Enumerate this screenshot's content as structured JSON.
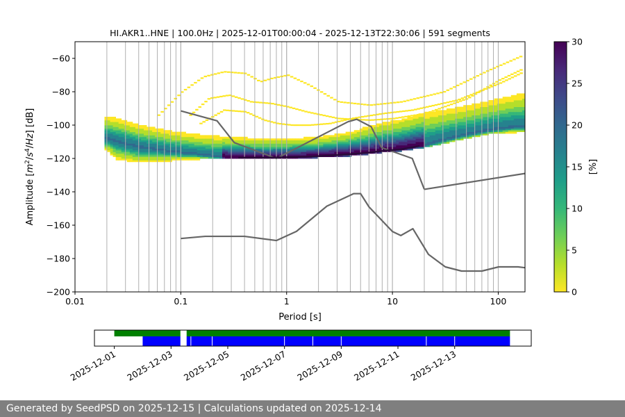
{
  "chart_data": {
    "type": "heatmap",
    "title": "HI.AKR1..HNE | 100.0Hz | 2025-12-01T00:00:04 - 2025-12-13T22:30:06 | 591 segments",
    "xlabel": "Period [s]",
    "ylabel": "Amplitude [m²/s⁴/Hz] [dB]",
    "ylabel_parts": [
      "Amplitude [",
      "m",
      "2",
      "/",
      "s",
      "4",
      "/",
      "Hz",
      "] [dB]"
    ],
    "x_scale": "log",
    "xlim": [
      0.01,
      179
    ],
    "ylim": [
      -200,
      -50
    ],
    "x_ticks": [
      0.01,
      0.1,
      1,
      10,
      100
    ],
    "x_tick_labels": [
      "0.01",
      "0.1",
      "1",
      "10",
      "100"
    ],
    "y_ticks": [
      -200,
      -180,
      -160,
      -140,
      -120,
      -100,
      -80,
      -60
    ],
    "y_tick_labels": [
      "−200",
      "−180",
      "−160",
      "−140",
      "−120",
      "−100",
      "−80",
      "−60"
    ],
    "grid": "vertical-period-lines",
    "colorbar": {
      "label": "[%]",
      "range": [
        0,
        30
      ],
      "ticks": [
        0,
        5,
        10,
        15,
        20,
        25,
        30
      ],
      "tick_labels": [
        "0",
        "5",
        "10",
        "15",
        "20",
        "25",
        "30"
      ]
    },
    "mode_curve": {
      "x": [
        0.02,
        0.04,
        0.08,
        0.15,
        0.3,
        0.7,
        1.5,
        3,
        6,
        8,
        12,
        20,
        40,
        80,
        150
      ],
      "y": [
        -108,
        -113,
        -115.5,
        -117.5,
        -119.5,
        -119.5,
        -119,
        -118,
        -116.5,
        -115.5,
        -114.5,
        -112,
        -107,
        -103,
        -101
      ]
    },
    "spread_band": {
      "x": [
        0.02,
        0.025,
        0.04,
        0.08,
        0.15,
        0.3,
        0.6,
        1,
        2,
        4,
        6,
        8,
        12,
        20,
        40,
        80,
        150,
        179
      ],
      "y_upper": [
        -95,
        -96,
        -100,
        -104,
        -106,
        -107.5,
        -108.5,
        -108.5,
        -107.5,
        -104.5,
        -101,
        -99,
        -97,
        -93,
        -90,
        -86,
        -82,
        -81
      ],
      "y_lower": [
        -115,
        -120,
        -122,
        -121,
        -120,
        -120,
        -120,
        -120,
        -119,
        -118,
        -117,
        -116,
        -115,
        -113,
        -109,
        -105,
        -104,
        -104
      ]
    },
    "outlier_curves": [
      {
        "name": "upper-arc",
        "x": [
          0.06,
          0.1,
          0.16,
          0.25,
          0.4,
          0.55,
          0.7,
          1.0,
          1.6,
          3,
          6,
          12,
          30,
          80,
          170
        ],
        "y": [
          -94,
          -80,
          -71,
          -68,
          -69,
          -74,
          -72,
          -70,
          -76,
          -86,
          -88,
          -86,
          -80,
          -67,
          -58
        ]
      },
      {
        "name": "middle-arc",
        "x": [
          0.12,
          0.18,
          0.28,
          0.45,
          0.7,
          1.0,
          1.5,
          3,
          6,
          10,
          20,
          50,
          100,
          170
        ],
        "y": [
          -94,
          -84,
          -82,
          -86,
          -87,
          -89,
          -92,
          -96,
          -97,
          -96,
          -93,
          -84,
          -73,
          -66
        ]
      },
      {
        "name": "lower-arc",
        "x": [
          0.15,
          0.25,
          0.4,
          0.6,
          0.8,
          1.1,
          1.6,
          2.5,
          4,
          8,
          15,
          40,
          100,
          170
        ],
        "y": [
          -99,
          -91,
          -92,
          -97,
          -99,
          -100,
          -100,
          -99,
          -96,
          -93,
          -91,
          -85,
          -75,
          -68
        ]
      }
    ],
    "nhnm": {
      "name": "New High Noise Model",
      "x": [
        0.1,
        0.22,
        0.32,
        0.8,
        3.8,
        4.6,
        6.3,
        7.9,
        15.4,
        20
      ],
      "y": [
        -91.5,
        -97.4,
        -110.5,
        -120,
        -98,
        -96.5,
        -101,
        -113.5,
        -120,
        -138.5
      ]
    },
    "nhnm_tail": {
      "x": [
        20,
        179
      ],
      "y": [
        -138.5,
        -129
      ]
    },
    "nlnm": {
      "name": "New Low Noise Model",
      "x": [
        0.1,
        0.17,
        0.4,
        0.8,
        1.24,
        2.4,
        4.3,
        5.0,
        6.0,
        10.0,
        12.0,
        15.6,
        21.9,
        31.6,
        45,
        70,
        101,
        154,
        179
      ],
      "y": [
        -168,
        -166.7,
        -166.7,
        -169.2,
        -163.7,
        -148.6,
        -141.1,
        -141.1,
        -149,
        -163.8,
        -166.2,
        -162.1,
        -177.5,
        -185,
        -187.5,
        -187.5,
        -185,
        -185,
        -185.5
      ]
    },
    "timeline": {
      "x_tick_labels": [
        "2025-12-01",
        "2025-12-03",
        "2025-12-05",
        "2025-12-07",
        "2025-12-09",
        "2025-12-11",
        "2025-12-13"
      ],
      "x_range_days": [
        -0.7,
        14.7
      ],
      "tick_days": [
        0,
        2,
        4,
        6,
        8,
        10,
        12
      ],
      "data_color": "#008000",
      "psd_color": "#0000ff",
      "data_segments": [
        [
          0,
          2.33
        ],
        [
          2.55,
          13.95
        ]
      ],
      "psd_segments": [
        [
          1,
          2.33
        ],
        [
          2.55,
          13.95
        ]
      ],
      "psd_gaps": [
        2.7,
        3.45,
        6.0,
        7.0,
        8.0,
        11.0,
        12.0
      ]
    },
    "series_colors": {
      "noise_models": "#666666",
      "mode": "#2a0a3a",
      "cmap": [
        "#fde725",
        "#b5de2b",
        "#6ece58",
        "#35b779",
        "#1f9e89",
        "#26828e",
        "#31688e",
        "#3e4989",
        "#482878",
        "#440154"
      ]
    }
  },
  "footer": {
    "text": "Generated by SeedPSD on 2025-12-15 | Calculations updated on 2025-12-14"
  }
}
